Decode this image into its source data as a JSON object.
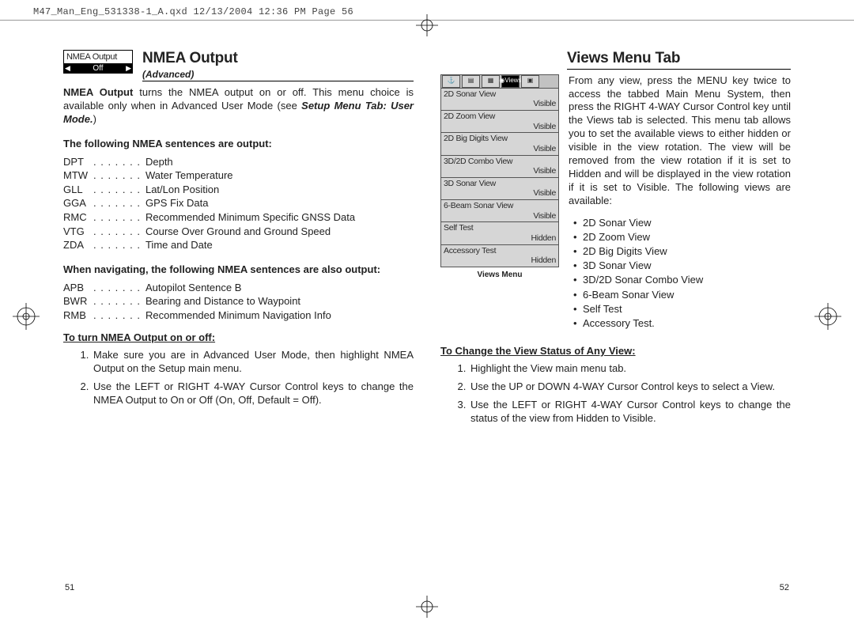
{
  "file_header": "M47_Man_Eng_531338-1_A.qxd  12/13/2004  12:36 PM  Page 56",
  "left": {
    "widget_label": "NMEA Output",
    "widget_value": "Off",
    "title": "NMEA Output",
    "subtitle": "(Advanced)",
    "intro_bold": "NMEA Output",
    "intro_rest": " turns the NMEA output on or off.  This menu choice is available only when in Advanced User Mode (see ",
    "intro_ref": "Setup Menu Tab: User Mode.",
    "intro_close": ")",
    "sent_head": "The following NMEA sentences are output:",
    "sentences": [
      {
        "code": "DPT",
        "desc": "Depth"
      },
      {
        "code": "MTW",
        "desc": "Water Temperature"
      },
      {
        "code": "GLL",
        "desc": "Lat/Lon Position"
      },
      {
        "code": "GGA",
        "desc": "GPS Fix Data"
      },
      {
        "code": "RMC",
        "desc": "Recommended Minimum Specific GNSS Data"
      },
      {
        "code": "VTG",
        "desc": "Course Over Ground and Ground Speed"
      },
      {
        "code": "ZDA",
        "desc": "Time and Date"
      }
    ],
    "nav_head": "When navigating, the following NMEA sentences are also output:",
    "nav_sentences": [
      {
        "code": "APB",
        "desc": "Autopilot Sentence B"
      },
      {
        "code": "BWR",
        "desc": "Bearing and Distance to Waypoint"
      },
      {
        "code": "RMB",
        "desc": "Recommended Minimum Navigation Info"
      }
    ],
    "instr_head": "To turn NMEA Output on or off:",
    "steps": [
      "Make sure you are in Advanced User Mode, then highlight NMEA Output on the Setup main menu.",
      "Use the LEFT or RIGHT 4-WAY Cursor Control keys to change the NMEA Output to On or Off (On, Off, Default = Off)."
    ],
    "page_num": "51"
  },
  "right": {
    "title": "Views Menu Tab",
    "tab_active": "Views",
    "menu_rows": [
      {
        "name": "2D Sonar View",
        "val": "Visible"
      },
      {
        "name": "2D Zoom View",
        "val": "Visible"
      },
      {
        "name": "2D Big Digits View",
        "val": "Visible"
      },
      {
        "name": "3D/2D Combo View",
        "val": "Visible"
      },
      {
        "name": "3D Sonar View",
        "val": "Visible"
      },
      {
        "name": "6-Beam Sonar View",
        "val": "Visible"
      },
      {
        "name": "Self Test",
        "val": "Hidden"
      },
      {
        "name": "Accessory Test",
        "val": "Hidden"
      }
    ],
    "caption": "Views Menu",
    "intro": "From any view, press the MENU key twice to access the tabbed Main Menu System, then press the RIGHT 4-WAY Cursor Control key until the Views tab is selected. This menu tab allows you to set the available views to either hidden or visible in the view rotation.  The view will be removed from the view rotation if it is set to Hidden and will be displayed in the view rotation if it is set to Visible. The following views are available:",
    "bullets": [
      "2D Sonar View",
      "2D Zoom View",
      "2D Big Digits View",
      "3D Sonar View",
      "3D/2D Sonar Combo View",
      "6-Beam Sonar View",
      "Self Test",
      "Accessory Test."
    ],
    "instr_head": "To Change the View Status of Any View:",
    "steps": [
      "Highlight the View main menu tab.",
      "Use the UP or DOWN 4-WAY Cursor Control keys to select a View.",
      "Use the LEFT or RIGHT 4-WAY Cursor Control keys to change the status of the view from Hidden to Visible."
    ],
    "page_num": "52"
  }
}
